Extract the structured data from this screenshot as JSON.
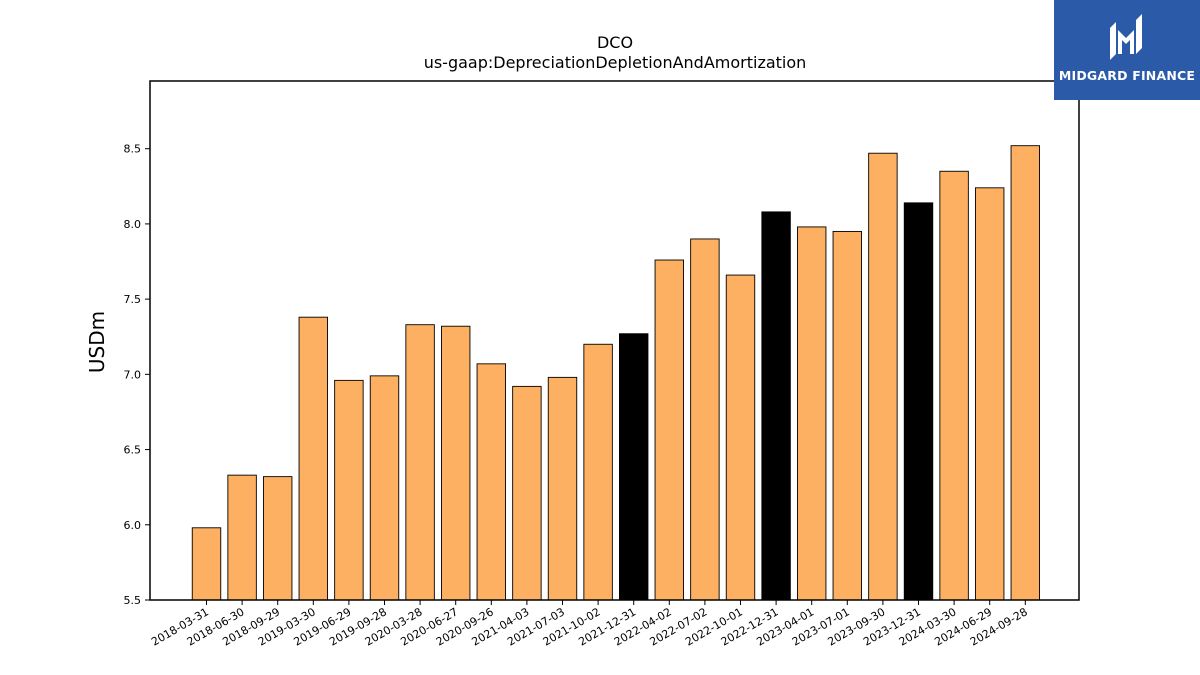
{
  "chart_data": {
    "type": "bar",
    "title": "DCO",
    "subtitle": "us-gaap:DepreciationDepletionAndAmortization",
    "xlabel": "",
    "ylabel": "USDm",
    "ylim": [
      5.5,
      8.95
    ],
    "yticks": [
      5.5,
      6.0,
      6.5,
      7.0,
      7.5,
      8.0,
      8.5
    ],
    "grid": false,
    "legend": "none",
    "categories": [
      "2018-03-31",
      "2018-06-30",
      "2018-09-29",
      "2019-03-30",
      "2019-06-29",
      "2019-09-28",
      "2020-03-28",
      "2020-06-27",
      "2020-09-26",
      "2021-04-03",
      "2021-07-03",
      "2021-10-02",
      "2021-12-31",
      "2022-04-02",
      "2022-07-02",
      "2022-10-01",
      "2022-12-31",
      "2023-04-01",
      "2023-07-01",
      "2023-09-30",
      "2023-12-31",
      "2024-03-30",
      "2024-06-29",
      "2024-09-28"
    ],
    "values": [
      5.98,
      6.33,
      6.32,
      7.38,
      6.96,
      6.99,
      7.33,
      7.32,
      7.07,
      6.92,
      6.98,
      7.2,
      7.27,
      7.76,
      7.9,
      7.66,
      8.08,
      7.98,
      7.95,
      8.47,
      8.14,
      8.35,
      8.24,
      8.52
    ],
    "highlight": [
      false,
      false,
      false,
      false,
      false,
      false,
      false,
      false,
      false,
      false,
      false,
      false,
      true,
      false,
      false,
      false,
      true,
      false,
      false,
      false,
      true,
      false,
      false,
      false
    ],
    "colors": {
      "bar": "#fdb062",
      "highlight": "#000000",
      "edge": "#000000"
    }
  },
  "logo": {
    "text": "MIDGARD FINANCE",
    "background": "#2a5aa8"
  }
}
